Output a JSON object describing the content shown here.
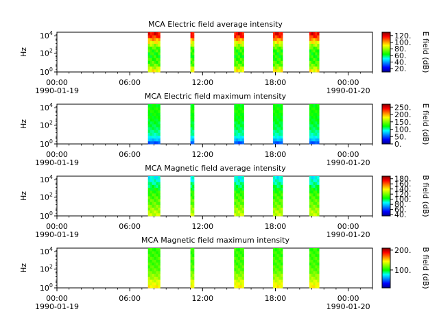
{
  "colors": {
    "colormap": [
      "#00008f",
      "#0000ff",
      "#0080ff",
      "#00ffff",
      "#00ff00",
      "#80ff00",
      "#ffff00",
      "#ff8000",
      "#ff0000",
      "#800000"
    ],
    "axis": "#000000",
    "background": "#ffffff"
  },
  "chart_data": [
    {
      "type": "heatmap",
      "title": "MCA  Electric field average intensity",
      "ylabel": "Hz",
      "colorbar_label": "E field (dB)",
      "colorbar_ticks": [
        "20.",
        "40.",
        "60.",
        "80.",
        "100.",
        "120."
      ],
      "colorbar_range": [
        10,
        130
      ],
      "yticks": [
        "10^0",
        "10^2",
        "10^4"
      ],
      "xticks": [
        {
          "time": "00:00",
          "date": "1990-01-19"
        },
        {
          "time": "06:00",
          "date": ""
        },
        {
          "time": "12:00",
          "date": ""
        },
        {
          "time": "18:00",
          "date": ""
        },
        {
          "time": "00:00",
          "date": "1990-01-20"
        }
      ],
      "segments_hours": [
        [
          7.5,
          8.5
        ],
        [
          11.0,
          11.3
        ],
        [
          14.6,
          15.4
        ],
        [
          17.8,
          18.6
        ],
        [
          20.8,
          21.6
        ]
      ],
      "profile_db": [
        90,
        82,
        74,
        70,
        68,
        66,
        66,
        68,
        72,
        80,
        90,
        100,
        112,
        118
      ]
    },
    {
      "type": "heatmap",
      "title": "MCA  Electric field maximum intensity",
      "ylabel": "Hz",
      "colorbar_label": "E field (dB)",
      "colorbar_ticks": [
        "0.",
        "50.",
        "100.",
        "150.",
        "200.",
        "250."
      ],
      "colorbar_range": [
        0,
        270
      ],
      "yticks": [
        "10^0",
        "10^2",
        "10^4"
      ],
      "xticks": [
        {
          "time": "00:00",
          "date": "1990-01-19"
        },
        {
          "time": "06:00",
          "date": ""
        },
        {
          "time": "12:00",
          "date": ""
        },
        {
          "time": "18:00",
          "date": ""
        },
        {
          "time": "00:00",
          "date": "1990-01-20"
        }
      ],
      "segments_hours": [
        [
          7.5,
          8.5
        ],
        [
          11.0,
          11.3
        ],
        [
          14.6,
          15.4
        ],
        [
          17.8,
          18.6
        ],
        [
          20.8,
          21.6
        ]
      ],
      "profile_db": [
        50,
        75,
        90,
        100,
        105,
        110,
        112,
        115,
        118,
        120,
        122,
        125,
        125,
        120
      ]
    },
    {
      "type": "heatmap",
      "title": "MCA  Magnetic field average intensity",
      "ylabel": "Hz",
      "colorbar_label": "B field (dB)",
      "colorbar_ticks": [
        "40.",
        "60.",
        "80.",
        "100.",
        "120.",
        "140.",
        "160.",
        "180."
      ],
      "colorbar_range": [
        35,
        190
      ],
      "yticks": [
        "10^0",
        "10^2",
        "10^4"
      ],
      "xticks": [
        {
          "time": "00:00",
          "date": "1990-01-19"
        },
        {
          "time": "06:00",
          "date": ""
        },
        {
          "time": "12:00",
          "date": ""
        },
        {
          "time": "18:00",
          "date": ""
        },
        {
          "time": "00:00",
          "date": "1990-01-20"
        }
      ],
      "segments_hours": [
        [
          7.5,
          8.5
        ],
        [
          11.0,
          11.3
        ],
        [
          14.6,
          15.4
        ],
        [
          17.8,
          18.6
        ],
        [
          20.8,
          21.6
        ]
      ],
      "profile_db": [
        130,
        128,
        124,
        120,
        117,
        116,
        113,
        112,
        108,
        104,
        98,
        94,
        90,
        86
      ]
    },
    {
      "type": "heatmap",
      "title": "MCA  Magnetic field maximum intensity",
      "ylabel": "Hz",
      "colorbar_label": "B field (dB)",
      "colorbar_ticks": [
        "100.",
        "200."
      ],
      "colorbar_range": [
        10,
        210
      ],
      "yticks": [
        "10^0",
        "10^2",
        "10^4"
      ],
      "xticks": [
        {
          "time": "00:00",
          "date": "1990-01-19"
        },
        {
          "time": "06:00",
          "date": ""
        },
        {
          "time": "12:00",
          "date": ""
        },
        {
          "time": "18:00",
          "date": ""
        },
        {
          "time": "00:00",
          "date": "1990-01-20"
        }
      ],
      "segments_hours": [
        [
          7.5,
          8.5
        ],
        [
          11.0,
          11.3
        ],
        [
          14.6,
          15.4
        ],
        [
          17.8,
          18.6
        ],
        [
          20.8,
          21.6
        ]
      ],
      "profile_db": [
        145,
        140,
        135,
        128,
        124,
        118,
        114,
        112,
        110,
        110,
        110,
        108,
        108,
        106
      ]
    }
  ]
}
